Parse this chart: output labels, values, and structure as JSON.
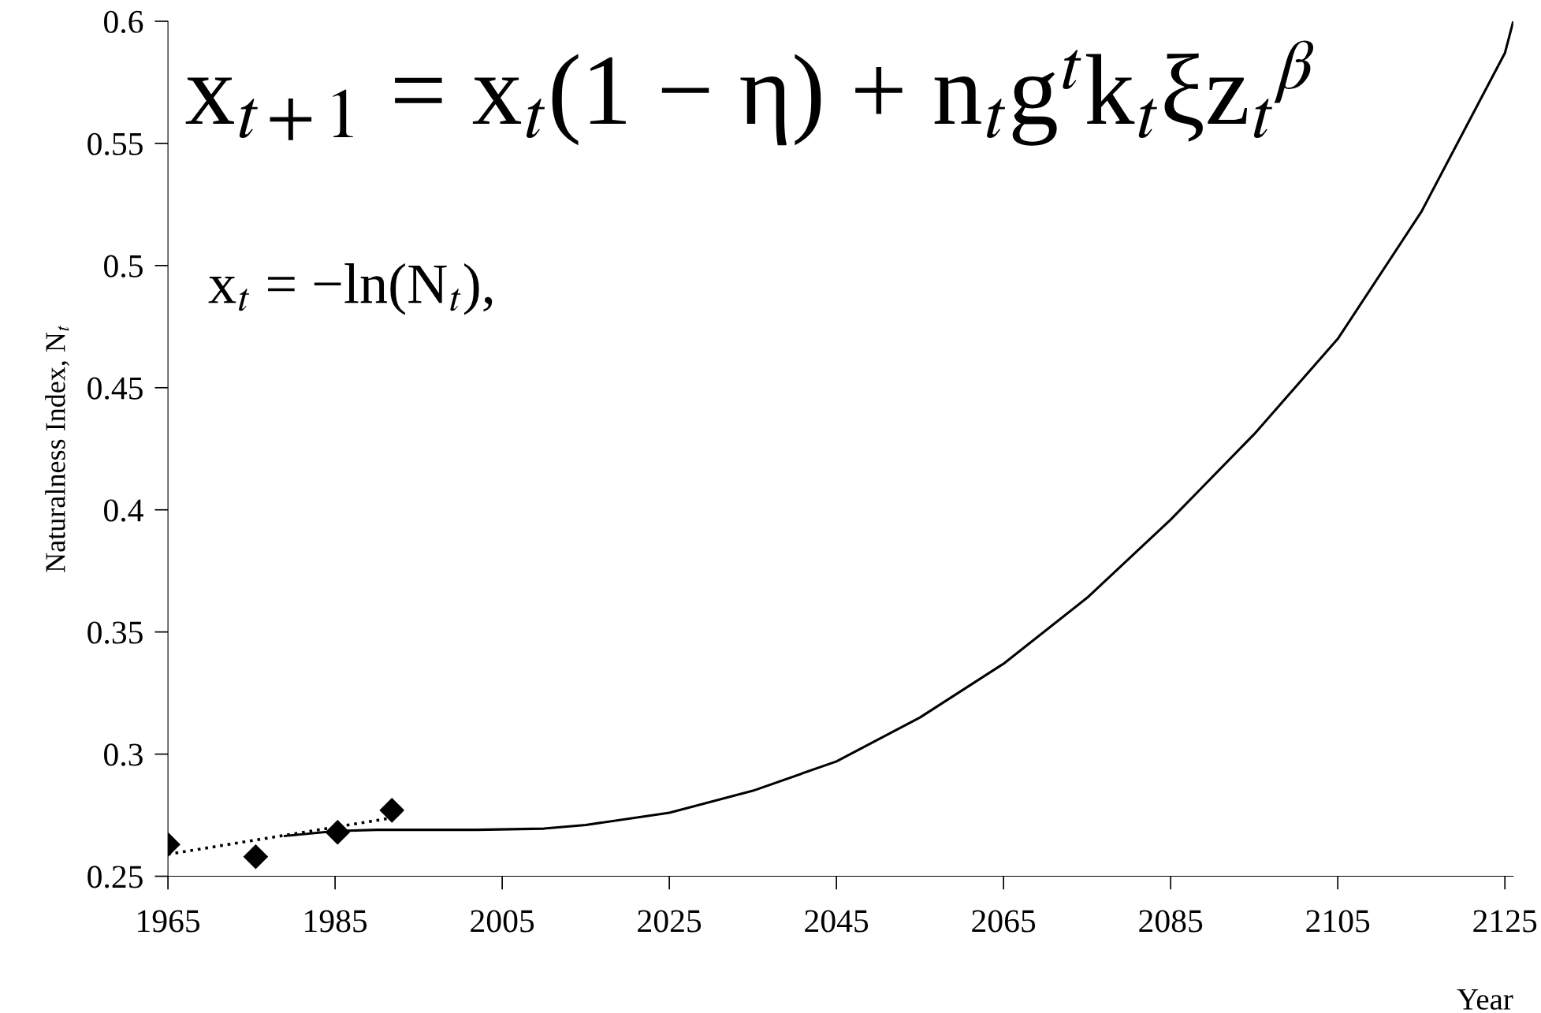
{
  "chart_data": {
    "type": "line",
    "xlabel": "Year",
    "ylabel": "Naturalness Index, N$_{t}$",
    "annotations": [
      "x$_{t+1}$ = x$_{t}$(1 − η) + n$_{t}$g$^{t}$k$_{t}$ξz$_{t}$$^{β}$",
      "x$_{t}$ = −ln(N$_{t}$),"
    ],
    "series": [
      {
        "type": "scatter",
        "color": "#000000",
        "marker": "diamond",
        "x": [
          1965,
          1975.5,
          1985.3,
          1991.8
        ],
        "values": [
          0.263,
          0.258,
          0.268,
          0.277
        ]
      },
      {
        "type": "line",
        "color": "#000000",
        "line_style": "dotted",
        "x": [
          1965,
          1992
        ],
        "values": [
          0.259,
          0.274
        ]
      },
      {
        "color": "#000000",
        "line_style": "solid",
        "x": [
          1979,
          1985,
          1990,
          1995,
          2002,
          2010,
          2015,
          2025,
          2035,
          2045,
          2055,
          2065,
          2075,
          2085,
          2095,
          2105,
          2115,
          2125,
          2126
        ],
        "values": [
          0.2665,
          0.2685,
          0.269,
          0.269,
          0.269,
          0.2695,
          0.271,
          0.276,
          0.285,
          0.297,
          0.315,
          0.337,
          0.364,
          0.396,
          0.431,
          0.47,
          0.522,
          0.587,
          0.6
        ]
      }
    ],
    "xlim": [
      1965,
      2126
    ],
    "xticks": [
      1965,
      1985,
      2005,
      2025,
      2045,
      2065,
      2085,
      2105,
      2125
    ],
    "ylim": [
      0.25,
      0.6
    ],
    "yticks": [
      0.25,
      0.3,
      0.35,
      0.4,
      0.45,
      0.5,
      0.55,
      0.6
    ],
    "grid": false,
    "legend": false
  }
}
